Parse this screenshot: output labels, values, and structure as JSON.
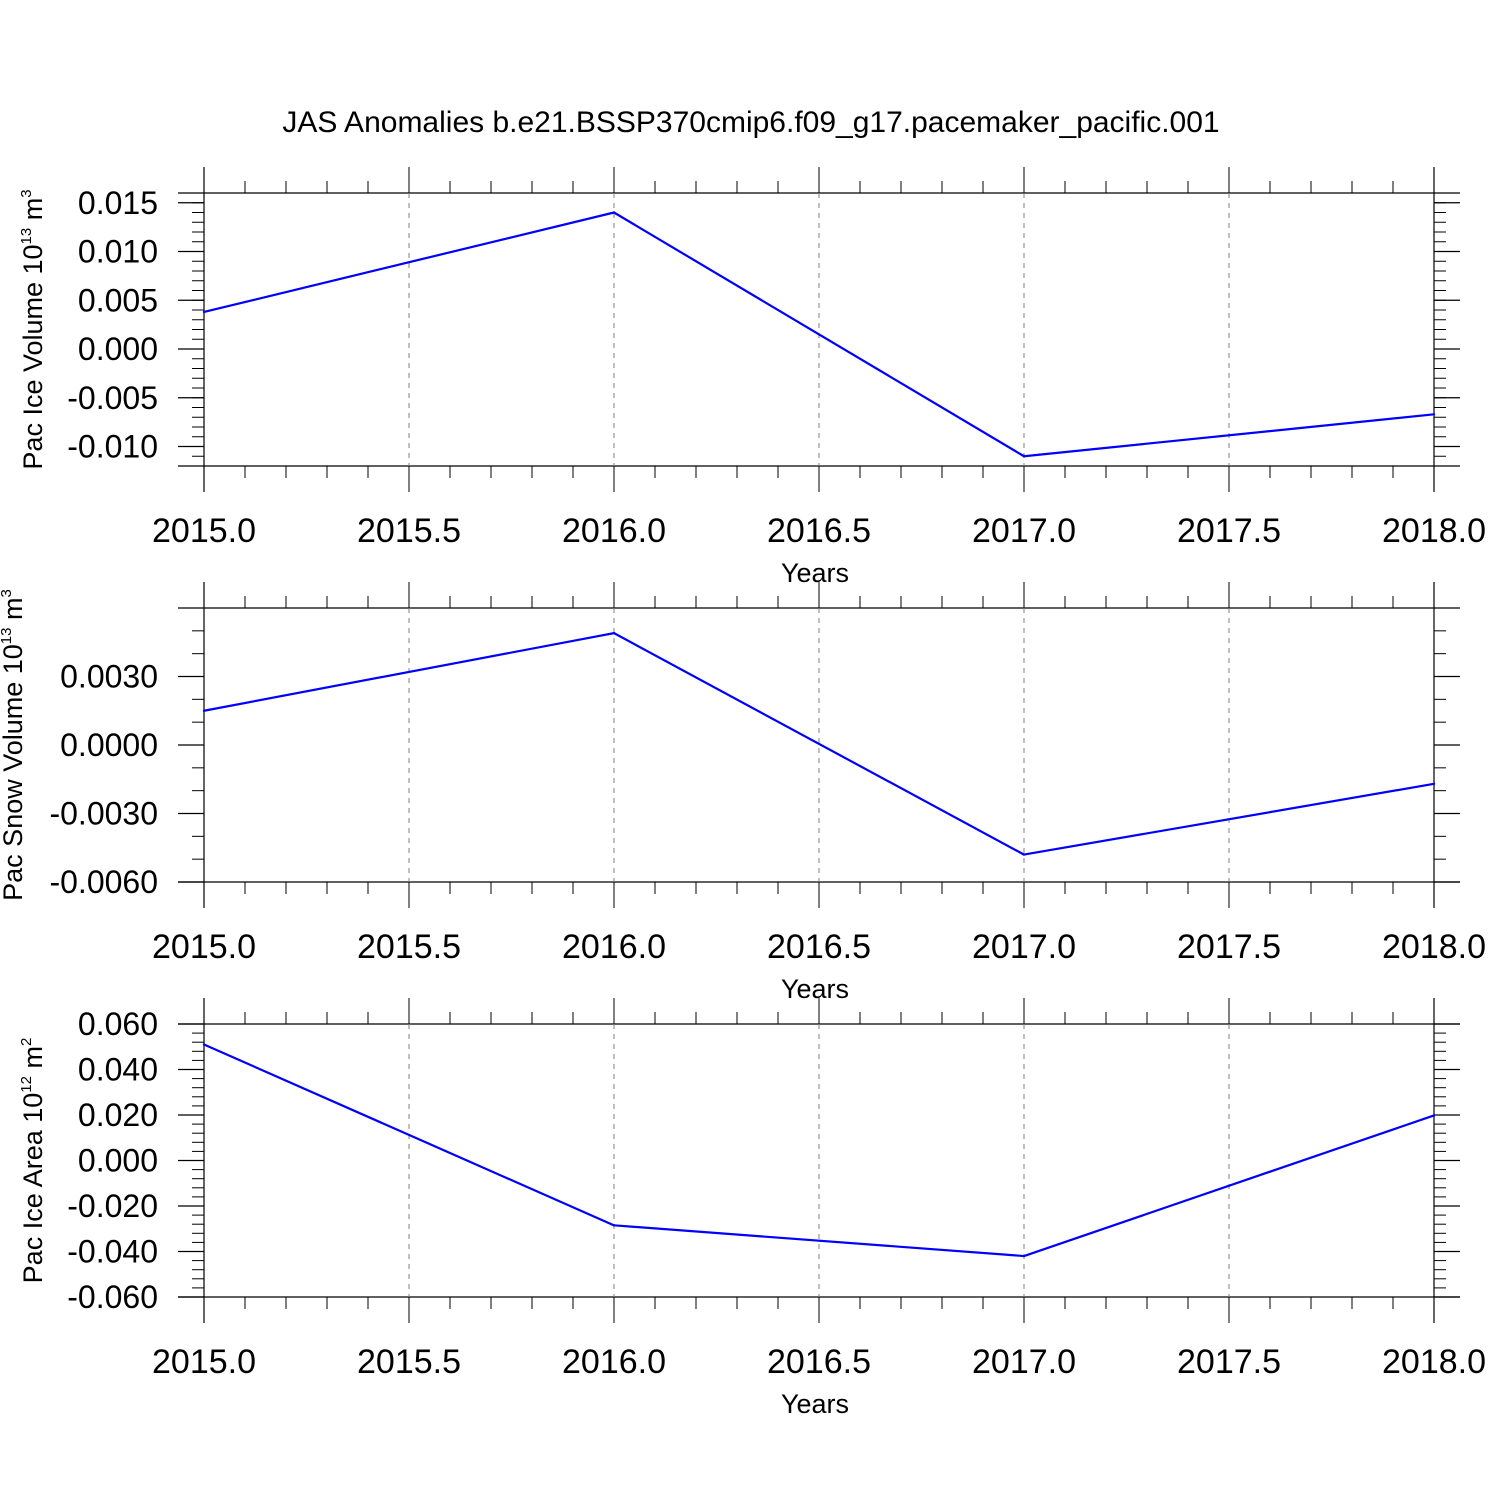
{
  "title": "JAS Anomalies b.e21.BSSP370cmip6.f09_g17.pacemaker_pacific.001",
  "colors": {
    "series": "#0000ff",
    "axis": "#000000",
    "grid": "#808080"
  },
  "chart_data": [
    {
      "type": "line",
      "ylabel": {
        "text": "Pac Ice Volume 10",
        "sup": "13",
        "unit": " m",
        "unit_sup": "3"
      },
      "xlabel": "Years",
      "x": [
        2015,
        2016,
        2017,
        2018
      ],
      "values": [
        0.0038,
        0.014,
        -0.011,
        -0.0067
      ],
      "xlim": [
        2015.0,
        2018.0
      ],
      "ylim": [
        -0.012,
        0.016
      ],
      "xticks": [
        2015.0,
        2015.5,
        2016.0,
        2016.5,
        2017.0,
        2017.5,
        2018.0
      ],
      "xtick_labels": [
        "2015.0",
        "2015.5",
        "2016.0",
        "2016.5",
        "2017.0",
        "2017.5",
        "2018.0"
      ],
      "yticks": [
        0.015,
        0.01,
        0.005,
        0.0,
        -0.005,
        -0.01
      ],
      "ytick_labels": [
        "0.015",
        "0.010",
        "0.005",
        "0.000",
        "-0.005",
        "-0.010"
      ],
      "yminor_step": 0.001,
      "xminor_step": 0.1,
      "grid": "vertical dashed at major x ticks"
    },
    {
      "type": "line",
      "ylabel": {
        "text": "Pac Snow Volume 10",
        "sup": "13",
        "unit": " m",
        "unit_sup": "3"
      },
      "xlabel": "Years",
      "x": [
        2015,
        2016,
        2017,
        2018
      ],
      "values": [
        0.0015,
        0.0049,
        -0.0048,
        -0.0017
      ],
      "xlim": [
        2015.0,
        2018.0
      ],
      "ylim": [
        -0.006,
        0.006
      ],
      "xticks": [
        2015.0,
        2015.5,
        2016.0,
        2016.5,
        2017.0,
        2017.5,
        2018.0
      ],
      "xtick_labels": [
        "2015.0",
        "2015.5",
        "2016.0",
        "2016.5",
        "2017.0",
        "2017.5",
        "2018.0"
      ],
      "yticks": [
        0.003,
        0.0,
        -0.003,
        -0.006
      ],
      "ytick_labels": [
        "0.0030",
        "0.0000",
        "-0.0030",
        "-0.0060"
      ],
      "yminor_step": 0.001,
      "xminor_step": 0.1,
      "grid": "vertical dashed at major x ticks"
    },
    {
      "type": "line",
      "ylabel": {
        "text": "Pac Ice Area 10",
        "sup": "12",
        "unit": " m",
        "unit_sup": "2"
      },
      "xlabel": "Years",
      "x": [
        2015,
        2016,
        2017,
        2018
      ],
      "values": [
        0.051,
        -0.0285,
        -0.042,
        0.0198
      ],
      "xlim": [
        2015.0,
        2018.0
      ],
      "ylim": [
        -0.06,
        0.06
      ],
      "xticks": [
        2015.0,
        2015.5,
        2016.0,
        2016.5,
        2017.0,
        2017.5,
        2018.0
      ],
      "xtick_labels": [
        "2015.0",
        "2015.5",
        "2016.0",
        "2016.5",
        "2017.0",
        "2017.5",
        "2018.0"
      ],
      "yticks": [
        0.06,
        0.04,
        0.02,
        0.0,
        -0.02,
        -0.04,
        -0.06
      ],
      "ytick_labels": [
        "0.060",
        "0.040",
        "0.020",
        "0.000",
        "-0.020",
        "-0.040",
        "-0.060"
      ],
      "yminor_step": 0.004,
      "xminor_step": 0.1,
      "grid": "vertical dashed at major x ticks"
    }
  ]
}
